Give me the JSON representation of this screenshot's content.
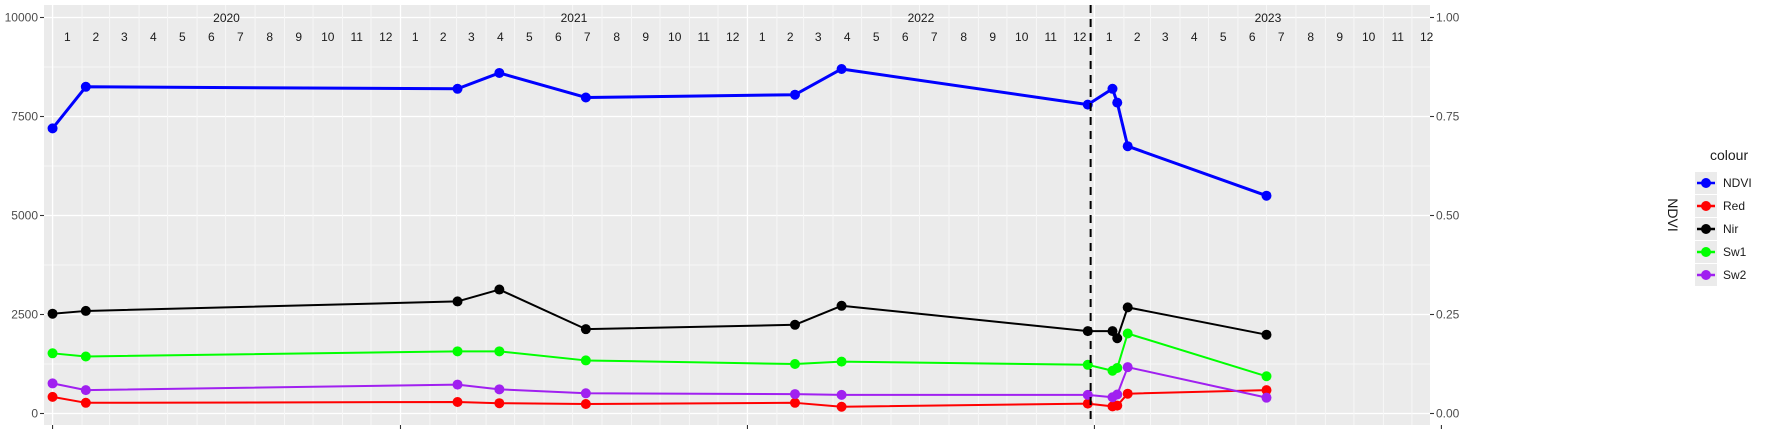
{
  "chart_data": {
    "type": "line",
    "title": "",
    "xlabel": "",
    "ylabel_left": "",
    "ylabel_right": "NDVI",
    "ylim_left": [
      0,
      10000
    ],
    "ylim_right": [
      0,
      1
    ],
    "yticks_left": [
      0,
      2500,
      5000,
      7500,
      10000
    ],
    "yticks_left_labels": [
      "0",
      "2500",
      "5000",
      "7500",
      "10000"
    ],
    "yticks_right": [
      0,
      0.25,
      0.5,
      0.75,
      1.0
    ],
    "yticks_right_labels": [
      "0.00",
      "0.25",
      "0.50",
      "0.75",
      "1.00"
    ],
    "grid": true,
    "legend_title": "colour",
    "legend_position": "right",
    "years": [
      "2020",
      "2021",
      "2022",
      "2023"
    ],
    "months": [
      "1",
      "2",
      "3",
      "4",
      "5",
      "6",
      "7",
      "8",
      "9",
      "10",
      "11",
      "12"
    ],
    "x_range": [
      "2019-12-23",
      "2023-12-20"
    ],
    "vline_date": "2022-12-28",
    "series": [
      {
        "name": "NDVI",
        "color": "#0000ff",
        "axis": "right",
        "dates": [
          "2020-01-01",
          "2020-02-05",
          "2021-03-02",
          "2021-04-15",
          "2021-07-15",
          "2022-02-20",
          "2022-04-10",
          "2022-12-25",
          "2023-01-20",
          "2023-01-25",
          "2023-02-05",
          "2023-07-01"
        ],
        "values": [
          0.72,
          0.825,
          0.82,
          0.86,
          0.798,
          0.805,
          0.87,
          0.78,
          0.82,
          0.785,
          0.675,
          0.55
        ]
      },
      {
        "name": "Red",
        "color": "#ff0000",
        "axis": "left",
        "dates": [
          "2020-01-01",
          "2020-02-05",
          "2021-03-02",
          "2021-04-15",
          "2021-07-15",
          "2022-02-20",
          "2022-04-10",
          "2022-12-25",
          "2023-01-20",
          "2023-01-25",
          "2023-02-05",
          "2023-07-01"
        ],
        "values": [
          420,
          270,
          290,
          260,
          240,
          270,
          170,
          250,
          180,
          200,
          500,
          590
        ]
      },
      {
        "name": "Nir",
        "color": "#000000",
        "axis": "left",
        "dates": [
          "2020-01-01",
          "2020-02-05",
          "2021-03-02",
          "2021-04-15",
          "2021-07-15",
          "2022-02-20",
          "2022-04-10",
          "2022-12-25",
          "2023-01-20",
          "2023-01-25",
          "2023-02-05",
          "2023-07-01"
        ],
        "values": [
          2520,
          2590,
          2830,
          3130,
          2130,
          2240,
          2720,
          2080,
          2080,
          1900,
          2680,
          1990
        ]
      },
      {
        "name": "Sw1",
        "color": "#00ff00",
        "axis": "left",
        "dates": [
          "2020-01-01",
          "2020-02-05",
          "2021-03-02",
          "2021-04-15",
          "2021-07-15",
          "2022-02-20",
          "2022-04-10",
          "2022-12-25",
          "2023-01-20",
          "2023-01-25",
          "2023-02-05",
          "2023-07-01"
        ],
        "values": [
          1520,
          1440,
          1570,
          1570,
          1340,
          1250,
          1310,
          1230,
          1080,
          1150,
          2020,
          940
        ]
      },
      {
        "name": "Sw2",
        "color": "#a020f0",
        "axis": "left",
        "dates": [
          "2020-01-01",
          "2020-02-05",
          "2021-03-02",
          "2021-04-15",
          "2021-07-15",
          "2022-02-20",
          "2022-04-10",
          "2022-12-25",
          "2023-01-20",
          "2023-01-25",
          "2023-02-05",
          "2023-07-01"
        ],
        "values": [
          760,
          590,
          730,
          610,
          510,
          490,
          470,
          470,
          410,
          480,
          1170,
          400
        ]
      }
    ]
  }
}
